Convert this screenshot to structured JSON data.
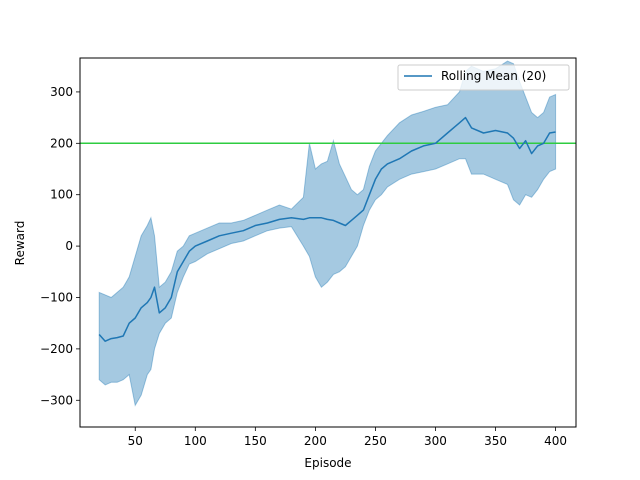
{
  "chart_data": {
    "type": "line",
    "title": "",
    "xlabel": "Episode",
    "ylabel": "Reward",
    "xlim": [
      4,
      417
    ],
    "ylim": [
      -352,
      366
    ],
    "xticks": [
      50,
      100,
      150,
      200,
      250,
      300,
      350,
      400
    ],
    "yticks": [
      -300,
      -200,
      -100,
      0,
      100,
      200,
      300
    ],
    "xtick_labels": [
      "50",
      "100",
      "150",
      "200",
      "250",
      "300",
      "350",
      "400"
    ],
    "ytick_labels": [
      "−300",
      "−200",
      "−100",
      "0",
      "100",
      "200",
      "300"
    ],
    "grid": false,
    "legend_location": "upper right",
    "colors": {
      "line": "#1f77b4",
      "band": "#a3c6e0",
      "threshold": "#2ecc40"
    },
    "threshold_line": {
      "y": 200
    },
    "series": [
      {
        "name": "Rolling Mean (20)",
        "x": [
          20,
          25,
          30,
          35,
          40,
          45,
          50,
          55,
          60,
          63,
          66,
          70,
          75,
          80,
          85,
          90,
          95,
          100,
          110,
          120,
          130,
          140,
          150,
          160,
          170,
          180,
          190,
          195,
          200,
          205,
          210,
          215,
          220,
          225,
          230,
          235,
          240,
          245,
          250,
          255,
          260,
          270,
          280,
          290,
          300,
          310,
          320,
          325,
          330,
          340,
          350,
          360,
          365,
          370,
          375,
          380,
          385,
          390,
          395,
          400
        ],
        "y": [
          -172,
          -185,
          -180,
          -178,
          -175,
          -150,
          -140,
          -120,
          -110,
          -100,
          -80,
          -130,
          -120,
          -100,
          -50,
          -30,
          -10,
          0,
          10,
          20,
          25,
          30,
          40,
          45,
          52,
          55,
          52,
          55,
          55,
          55,
          52,
          50,
          45,
          40,
          50,
          60,
          70,
          100,
          130,
          150,
          160,
          170,
          185,
          195,
          200,
          220,
          240,
          250,
          230,
          220,
          225,
          220,
          210,
          190,
          205,
          180,
          195,
          200,
          220,
          222
        ],
        "lower": [
          -260,
          -270,
          -265,
          -265,
          -260,
          -250,
          -310,
          -290,
          -250,
          -240,
          -200,
          -170,
          -150,
          -140,
          -90,
          -60,
          -35,
          -30,
          -15,
          -5,
          5,
          10,
          20,
          30,
          35,
          38,
          0,
          -20,
          -60,
          -80,
          -70,
          -55,
          -50,
          -40,
          -20,
          0,
          40,
          70,
          90,
          100,
          115,
          130,
          140,
          145,
          150,
          160,
          170,
          170,
          140,
          140,
          130,
          120,
          90,
          80,
          100,
          95,
          110,
          130,
          145,
          150
        ],
        "upper": [
          -90,
          -95,
          -100,
          -90,
          -80,
          -60,
          -20,
          20,
          40,
          55,
          20,
          -80,
          -70,
          -50,
          -10,
          0,
          20,
          25,
          35,
          45,
          45,
          50,
          60,
          70,
          80,
          72,
          95,
          200,
          150,
          160,
          165,
          205,
          160,
          135,
          110,
          100,
          110,
          155,
          185,
          200,
          215,
          240,
          255,
          262,
          270,
          275,
          300,
          340,
          350,
          340,
          345,
          360,
          355,
          320,
          290,
          260,
          250,
          260,
          290,
          295
        ]
      }
    ]
  }
}
